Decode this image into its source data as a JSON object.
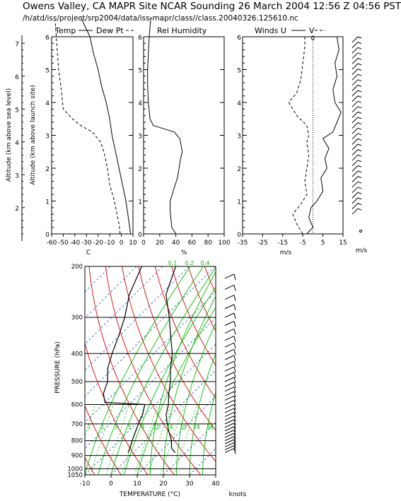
{
  "header": {
    "title": "Owens Valley, CA MAPR Site NCAR Sounding 26 March 2004 12:56 Z 04:56 PST",
    "subtitle": "/h/atd/iss/project/srp2004/data/iss-mapr/class//class.20040326.125610.nc"
  },
  "colors": {
    "isotherm": "#2060c0",
    "dry_adiabat": "#e00000",
    "mixing_ratio": "#00c000",
    "wind_label": "#000000"
  },
  "chart_data": [
    {
      "type": "line",
      "panel": "temperature-dewpoint",
      "title": "Temp ___ Dew Pt - - -",
      "title_text": {
        "left": "Temp",
        "right": "Dew Pt"
      },
      "xlabel": "C",
      "ylabel": "Altitude (km above launch site)",
      "outer_ylabel": "Altitude (km above sea level)",
      "xlim": [
        -60,
        10
      ],
      "ylim": [
        0,
        6
      ],
      "outer_ylim": [
        1.2,
        7.2
      ],
      "xticks": [
        "-60",
        "-50",
        "-40",
        "-30",
        "-20",
        "-10",
        "0",
        "10"
      ],
      "yticks": [
        "0",
        "1",
        "2",
        "3",
        "4",
        "5",
        "6"
      ],
      "outer_yticks": [
        "2",
        "3",
        "4",
        "5",
        "6",
        "7"
      ],
      "series": [
        {
          "name": "Temp",
          "style": "solid",
          "x": [
            8,
            6,
            4,
            1,
            -2,
            -5,
            -8,
            -10,
            -13,
            -17,
            -20,
            -24,
            -27,
            -31,
            -35
          ],
          "y": [
            0,
            0.5,
            1,
            1.5,
            2,
            2.5,
            3,
            3.5,
            4,
            4.5,
            5,
            5.5,
            6,
            6.3,
            6.6
          ]
        },
        {
          "name": "Dew Pt",
          "style": "dashed",
          "x": [
            -1,
            -2,
            -6,
            -10,
            -12,
            -15,
            -18,
            -25,
            -35,
            -42,
            -50,
            -52,
            -54,
            -55,
            -56,
            -57
          ],
          "y": [
            0,
            0.3,
            1,
            1.5,
            2,
            2.5,
            2.8,
            3.1,
            3.3,
            3.5,
            3.8,
            4.5,
            5,
            5.5,
            6,
            6.5
          ]
        }
      ]
    },
    {
      "type": "line",
      "panel": "relative-humidity",
      "title": "Rel Humidity",
      "xlabel": "%",
      "xlim": [
        0,
        100
      ],
      "ylim": [
        0,
        6
      ],
      "xticks": [
        "0",
        "20",
        "40",
        "60",
        "80",
        "100"
      ],
      "yticks": [
        "0",
        "1",
        "2",
        "3",
        "4",
        "5",
        "6"
      ],
      "series": [
        {
          "name": "Rel Humidity",
          "style": "solid",
          "x": [
            40,
            35,
            33,
            33,
            38,
            42,
            44,
            46,
            48,
            45,
            38,
            25,
            12,
            8,
            6,
            5,
            5,
            6,
            7,
            8,
            9
          ],
          "y": [
            0,
            0.2,
            0.7,
            1.0,
            1.4,
            1.7,
            2.0,
            2.3,
            2.5,
            2.9,
            3.1,
            3.2,
            3.3,
            3.5,
            4.0,
            4.5,
            5.0,
            5.5,
            6.0,
            6.3,
            6.6
          ]
        }
      ]
    },
    {
      "type": "line",
      "panel": "winds",
      "title": "Winds U ___ V - - -",
      "title_text": {
        "left": "Winds U",
        "right": "V"
      },
      "xlabel": "m/s",
      "xlim": [
        -35,
        15
      ],
      "ylim": [
        0,
        6
      ],
      "xticks": [
        "-35",
        "-25",
        "-15",
        "-5",
        "5",
        "15"
      ],
      "zero_label": "0",
      "series": [
        {
          "name": "U",
          "style": "solid",
          "x": [
            -3,
            0,
            -2,
            -1,
            2,
            5,
            4,
            7,
            6,
            8,
            5,
            10,
            12,
            14,
            11,
            10,
            12,
            11,
            13,
            12
          ],
          "y": [
            0,
            0.2,
            0.5,
            0.8,
            1.0,
            1.3,
            1.7,
            2.0,
            2.3,
            2.6,
            2.9,
            3.1,
            3.4,
            3.7,
            4.0,
            4.4,
            4.8,
            5.2,
            5.6,
            6.0
          ]
        },
        {
          "name": "V",
          "style": "dashed",
          "x": [
            -5,
            -8,
            -10,
            -6,
            -3,
            -4,
            -3,
            -2,
            -3,
            -2,
            -3,
            -8,
            -12,
            -8,
            -6,
            -5,
            -4,
            -4
          ],
          "y": [
            0,
            0.3,
            0.6,
            0.9,
            1.2,
            1.6,
            2.0,
            2.4,
            2.8,
            3.0,
            3.3,
            3.6,
            4.0,
            4.3,
            4.7,
            5.2,
            5.7,
            6.0
          ]
        }
      ]
    },
    {
      "type": "wind-barbs",
      "panel": "wind-barbs-altitude",
      "xlabel": "m/s"
    },
    {
      "type": "skew-t",
      "panel": "skew-t",
      "xlabel": "TEMPERATURE (°C)",
      "ylabel": "PRESSURE (hPa)",
      "xlim": [
        -10,
        40
      ],
      "plim": [
        1050,
        200
      ],
      "xticks": [
        "-10",
        "0",
        "10",
        "20",
        "30",
        "40"
      ],
      "pressure_ticks": [
        "200",
        "300",
        "400",
        "500",
        "600",
        "700",
        "800",
        "900",
        "1000",
        "1050"
      ],
      "mixing_ratio_labels": [
        "0.1",
        "0.2",
        "0.4"
      ],
      "mixing_ratio_row": [
        "1",
        "2",
        "3",
        "5",
        "8",
        "12",
        "16",
        "20",
        "28",
        "36"
      ],
      "series": [
        {
          "name": "Temperature",
          "style": "solid",
          "p": [
            880,
            850,
            800,
            750,
            700,
            650,
            600,
            550,
            500,
            450,
            400,
            350,
            300,
            250,
            200
          ],
          "t": [
            16,
            13,
            10,
            6,
            2,
            -2,
            -5,
            -9,
            -13,
            -18,
            -23,
            -30,
            -38,
            -48,
            -55
          ]
        },
        {
          "name": "Dew Point",
          "style": "solid",
          "p": [
            880,
            850,
            800,
            750,
            700,
            650,
            600,
            590,
            550,
            500,
            450,
            400,
            350,
            300,
            250,
            200
          ],
          "t": [
            -2,
            -3,
            -5,
            -7,
            -9,
            -11,
            -14,
            -30,
            -34,
            -37,
            -42,
            -46,
            -50,
            -55,
            -62,
            -68
          ]
        }
      ]
    },
    {
      "type": "wind-barbs",
      "panel": "wind-barbs-pressure",
      "xlabel": "knots"
    }
  ]
}
